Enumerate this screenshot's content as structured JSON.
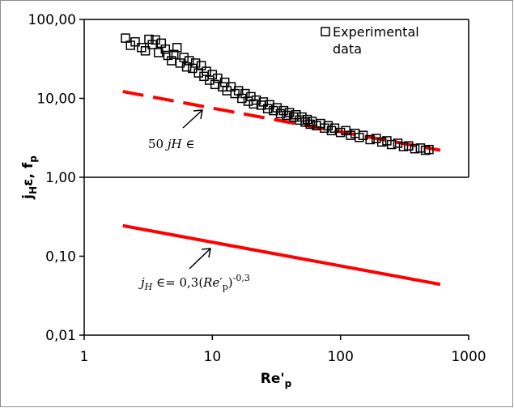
{
  "chart_data": {
    "type": "scatter",
    "x_scale": "log",
    "y_scale": "log",
    "xlim": [
      1,
      1000
    ],
    "ylim": [
      0.01,
      100
    ],
    "grid": "horizontal line at y=1",
    "xlabel_base": "Re'",
    "xlabel_sub": "p",
    "ylabel_parts": [
      "j",
      "H",
      "ε, f",
      "p"
    ],
    "x_ticks": [
      {
        "value": 1,
        "label": "1"
      },
      {
        "value": 10,
        "label": "10"
      },
      {
        "value": 100,
        "label": "100"
      },
      {
        "value": 1000,
        "label": "1000"
      }
    ],
    "y_ticks": [
      {
        "value": 100,
        "label": "100,00"
      },
      {
        "value": 10,
        "label": "10,00"
      },
      {
        "value": 1,
        "label": "1,00"
      },
      {
        "value": 0.1,
        "label": "0,10"
      },
      {
        "value": 0.01,
        "label": "0,01"
      }
    ],
    "legend": {
      "line1": "Experimental",
      "line2": "data",
      "position": "top-right"
    },
    "series": [
      {
        "name": "Experimental data",
        "marker": "open-square",
        "color": "#000000",
        "points": [
          [
            2.1,
            58
          ],
          [
            2.3,
            47
          ],
          [
            2.5,
            52
          ],
          [
            2.8,
            44
          ],
          [
            3.0,
            40
          ],
          [
            3.2,
            56
          ],
          [
            3.4,
            48
          ],
          [
            3.6,
            55
          ],
          [
            3.8,
            38
          ],
          [
            4.0,
            50
          ],
          [
            4.3,
            42
          ],
          [
            4.5,
            35
          ],
          [
            4.8,
            30
          ],
          [
            5.0,
            36
          ],
          [
            5.3,
            44
          ],
          [
            5.6,
            28
          ],
          [
            6.0,
            33
          ],
          [
            6.3,
            25
          ],
          [
            6.6,
            30
          ],
          [
            7.0,
            24
          ],
          [
            7.4,
            28
          ],
          [
            7.8,
            21
          ],
          [
            8.2,
            26
          ],
          [
            8.6,
            19
          ],
          [
            9.0,
            22
          ],
          [
            9.5,
            17
          ],
          [
            10,
            20
          ],
          [
            10.5,
            15
          ],
          [
            11,
            18
          ],
          [
            12,
            14
          ],
          [
            12.5,
            16
          ],
          [
            13,
            12.5
          ],
          [
            14,
            14
          ],
          [
            15,
            11.5
          ],
          [
            16,
            12.5
          ],
          [
            17,
            10
          ],
          [
            18,
            11.5
          ],
          [
            19,
            9.2
          ],
          [
            20,
            10.5
          ],
          [
            21,
            8.5
          ],
          [
            22,
            9.5
          ],
          [
            24,
            8.2
          ],
          [
            25,
            9
          ],
          [
            27,
            7.4
          ],
          [
            28,
            8.3
          ],
          [
            30,
            7
          ],
          [
            32,
            7.6
          ],
          [
            34,
            6.4
          ],
          [
            36,
            7
          ],
          [
            38,
            6.1
          ],
          [
            40,
            6.6
          ],
          [
            43,
            5.8
          ],
          [
            45,
            6.2
          ],
          [
            48,
            5.3
          ],
          [
            50,
            5.8
          ],
          [
            53,
            5
          ],
          [
            55,
            5.4
          ],
          [
            58,
            4.7
          ],
          [
            60,
            5.1
          ],
          [
            65,
            4.5
          ],
          [
            70,
            4.8
          ],
          [
            75,
            4.2
          ],
          [
            80,
            4.5
          ],
          [
            85,
            3.9
          ],
          [
            90,
            4.2
          ],
          [
            100,
            3.7
          ],
          [
            110,
            3.9
          ],
          [
            120,
            3.4
          ],
          [
            130,
            3.6
          ],
          [
            140,
            3.2
          ],
          [
            150,
            3.4
          ],
          [
            170,
            3.0
          ],
          [
            190,
            3.1
          ],
          [
            210,
            2.8
          ],
          [
            230,
            2.9
          ],
          [
            250,
            2.6
          ],
          [
            280,
            2.7
          ],
          [
            310,
            2.45
          ],
          [
            340,
            2.5
          ],
          [
            380,
            2.3
          ],
          [
            420,
            2.35
          ],
          [
            460,
            2.2
          ],
          [
            490,
            2.25
          ]
        ]
      },
      {
        "name": "50 jH ε",
        "style": "dashed",
        "color": "#ff0000",
        "points": [
          [
            2,
            12.2
          ],
          [
            600,
            2.2
          ]
        ]
      },
      {
        "name": "jH ε = 0,3 (Re'p)^-0,3",
        "style": "solid",
        "color": "#ff0000",
        "points": [
          [
            2,
            0.244
          ],
          [
            600,
            0.044
          ]
        ]
      }
    ],
    "annotations": [
      {
        "text": "50 jH ∈",
        "points_to": [
          10,
          8
        ]
      },
      {
        "text": "jH ∈= 0,3(Re'p)-0,3",
        "points_to": [
          10,
          0.15
        ]
      }
    ]
  },
  "annotations_display": {
    "dashed_label_prefix": "50 ",
    "dashed_label_j": "jH",
    "dashed_label_suffix": " ∈",
    "formula_j": "j",
    "formula_H": "H",
    "formula_mid": " ∈= 0,3(",
    "formula_Re": "Re",
    "formula_prime": "′",
    "formula_p": "p",
    "formula_close": ")",
    "formula_exp": "-0,3"
  },
  "colors": {
    "model_line": "#ff0000",
    "markers": "#000000",
    "axes": "#000000",
    "frame": "#8c8c8c"
  }
}
